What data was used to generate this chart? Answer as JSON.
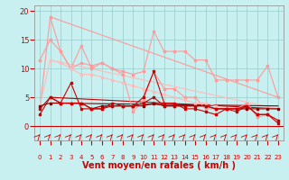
{
  "background_color": "#c8f0f0",
  "grid_color": "#99cccc",
  "xlabel": "Vent moyen/en rafales ( km/h )",
  "xlabel_color": "#cc0000",
  "xlabel_fontsize": 7,
  "xtick_color": "#cc0000",
  "ytick_color": "#cc0000",
  "x": [
    0,
    1,
    2,
    3,
    4,
    5,
    6,
    7,
    8,
    9,
    10,
    11,
    12,
    13,
    14,
    15,
    16,
    17,
    18,
    19,
    20,
    21,
    22,
    23
  ],
  "line_upper1_y": [
    3,
    19,
    13,
    10,
    14,
    10,
    11,
    10,
    9.5,
    9,
    9.5,
    16.5,
    13,
    13,
    13,
    11.5,
    11.5,
    8,
    8,
    8,
    8,
    8,
    10.5,
    5
  ],
  "line_upper2_y": [
    11.5,
    15,
    13,
    10,
    11,
    10.5,
    11,
    10,
    9,
    2.5,
    4.5,
    9.5,
    6.5,
    6.5,
    5,
    5,
    3,
    3,
    3,
    3,
    4,
    1.5,
    2,
    1
  ],
  "line_mid1_y": [
    3.5,
    11.5,
    11,
    10,
    9,
    9,
    8.5,
    8,
    7.5,
    7,
    6.5,
    6,
    5.5,
    5,
    4.5,
    4,
    4,
    3.5,
    3,
    3,
    3,
    3,
    3,
    3
  ],
  "line_mid2_y": [
    2,
    5,
    4,
    7.5,
    3,
    3,
    3,
    4,
    3.5,
    3.5,
    5,
    9.5,
    4,
    4,
    3,
    3,
    2.5,
    2,
    3,
    2.5,
    3.5,
    2,
    2,
    0.5
  ],
  "line_low1_y": [
    3.5,
    4,
    4,
    4,
    4,
    3,
    3.5,
    3.5,
    3.5,
    3.5,
    3.5,
    4,
    3.5,
    3.5,
    3.5,
    3.5,
    3.5,
    3,
    3,
    3,
    3,
    3,
    3,
    3
  ],
  "line_low2_y": [
    3,
    5,
    4,
    4,
    4,
    3,
    3,
    3.5,
    3.5,
    3.5,
    4,
    5,
    3.5,
    3.5,
    3.5,
    3.5,
    3.5,
    3,
    3,
    3,
    3.5,
    2,
    2,
    1
  ],
  "trend1_start": 19,
  "trend1_end": 5,
  "trend2_start": 11.5,
  "trend2_end": 3,
  "trend3_start": 5,
  "trend3_end": 3,
  "trend4_start": 4,
  "trend4_end": 3.5,
  "line_upper1_color": "#ff9999",
  "line_upper2_color": "#ff9999",
  "line_mid1_color": "#ffbbbb",
  "line_mid2_color": "#cc0000",
  "line_low1_color": "#880000",
  "line_low2_color": "#cc0000",
  "trend1_color": "#ff9999",
  "trend2_color": "#ffbbbb",
  "trend3_color": "#cc0000",
  "trend4_color": "#880000",
  "marker": "s",
  "markersize": 2,
  "linewidth": 0.8,
  "ylim": [
    -2.5,
    21
  ],
  "xlim": [
    -0.5,
    23.5
  ],
  "yticks": [
    0,
    5,
    10,
    15,
    20
  ],
  "xticks": [
    0,
    1,
    2,
    3,
    4,
    5,
    6,
    7,
    8,
    9,
    10,
    11,
    12,
    13,
    14,
    15,
    16,
    17,
    18,
    19,
    20,
    21,
    22,
    23
  ]
}
